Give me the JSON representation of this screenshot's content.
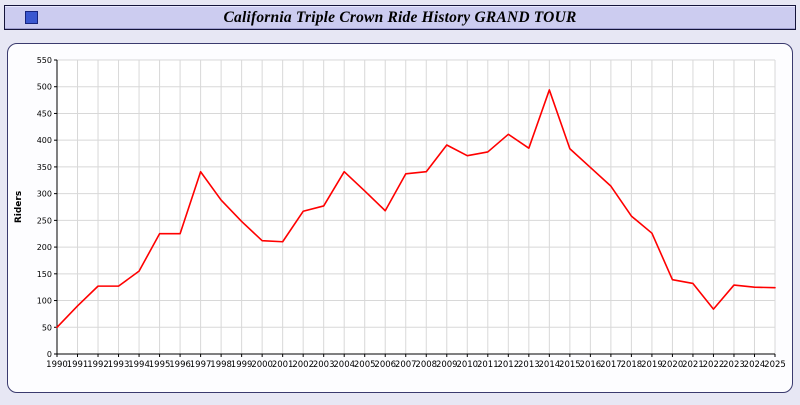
{
  "title_bar": {
    "title": "California Triple Crown Ride History GRAND TOUR"
  },
  "colors": {
    "page_bg": "#e7e7f4",
    "header_bg": "#ccccf0",
    "panel_border": "#3a3a6e",
    "icon_blue": "#3a57d0",
    "line_red": "#ff0000",
    "grid_gray": "#d8d8d8"
  },
  "chart_data": {
    "type": "line",
    "title": "California Triple Crown Ride History GRAND TOUR",
    "xlabel": "",
    "ylabel": "Riders",
    "ylim": [
      0,
      550
    ],
    "ytick_step": 50,
    "grid": true,
    "legend_position": "none",
    "x": [
      1990,
      1991,
      1992,
      1993,
      1994,
      1995,
      1996,
      1997,
      1998,
      1999,
      2000,
      2001,
      2002,
      2003,
      2004,
      2005,
      2006,
      2007,
      2008,
      2009,
      2010,
      2011,
      2012,
      2013,
      2014,
      2015,
      2016,
      2017,
      2018,
      2019,
      2020,
      2021,
      2022,
      2023,
      2024,
      2025
    ],
    "series": [
      {
        "name": "Riders",
        "color": "#ff0000",
        "values": [
          50,
          90,
          127,
          127,
          155,
          225,
          225,
          341,
          288,
          248,
          212,
          210,
          267,
          277,
          341,
          305,
          268,
          337,
          341,
          391,
          371,
          378,
          411,
          385,
          494,
          384,
          349,
          314,
          258,
          226,
          139,
          132,
          84,
          129,
          125,
          124
        ]
      }
    ]
  }
}
